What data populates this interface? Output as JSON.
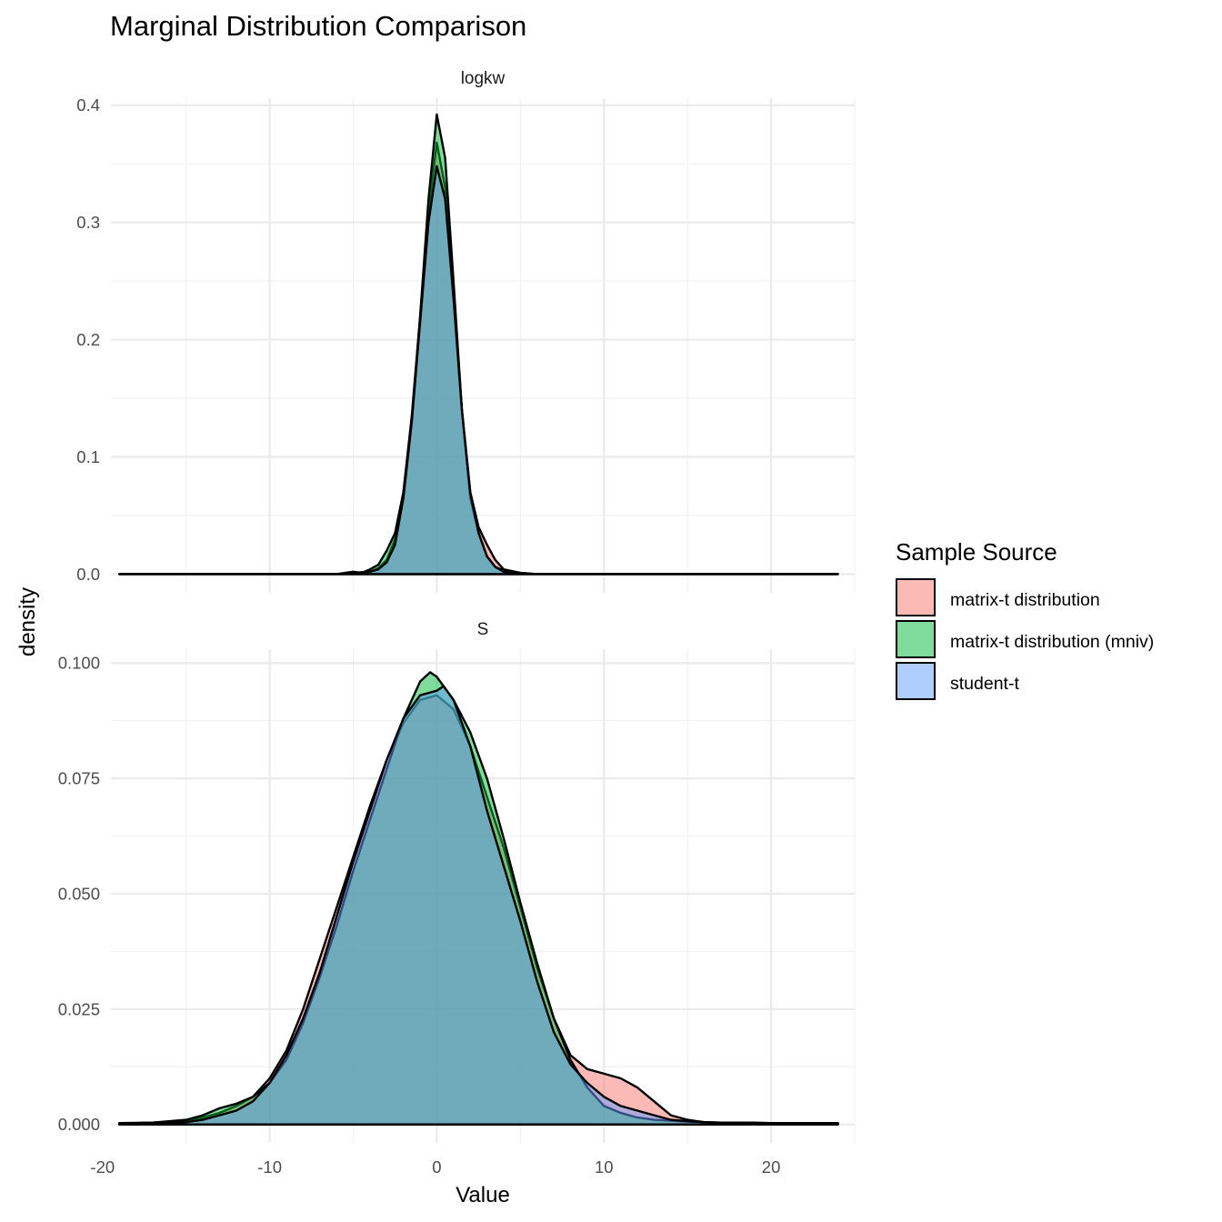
{
  "chart_data": {
    "type": "area",
    "title": "Marginal Distribution Comparison",
    "xlabel": "Value",
    "ylabel": "density",
    "xlim": [
      -19.5,
      25
    ],
    "x_ticks": [
      -20,
      -10,
      0,
      10,
      20
    ],
    "x_tick_labels": [
      "-20",
      "-10",
      "0",
      "10",
      "20"
    ],
    "grid": true,
    "legend": {
      "title": "Sample Source",
      "position": "right",
      "entries": [
        {
          "name": "matrix-t distribution",
          "color": "#F8766D"
        },
        {
          "name": "matrix-t distribution (mniv)",
          "color": "#00BA38"
        },
        {
          "name": "student-t",
          "color": "#619CFF"
        }
      ]
    },
    "fill_opacity": 0.5,
    "panels": [
      {
        "strip": "logkw",
        "ylim": [
          -0.016,
          0.406
        ],
        "y_ticks": [
          0,
          0.1,
          0.2,
          0.3,
          0.4
        ],
        "y_tick_labels": [
          "0.0",
          "0.1",
          "0.2",
          "0.3",
          "0.4"
        ],
        "series": [
          {
            "name": "matrix-t distribution",
            "x": [
              -19,
              -6,
              -5,
              -4,
              -3.5,
              -3,
              -2.5,
              -2,
              -1.5,
              -1,
              -0.5,
              0,
              0.5,
              1,
              1.5,
              2,
              2.5,
              3,
              3.5,
              4,
              5,
              6,
              24
            ],
            "y": [
              0,
              0,
              0.001,
              0.002,
              0.005,
              0.012,
              0.03,
              0.07,
              0.135,
              0.22,
              0.31,
              0.368,
              0.33,
              0.24,
              0.14,
              0.07,
              0.04,
              0.025,
              0.012,
              0.004,
              0.001,
              0,
              0
            ]
          },
          {
            "name": "matrix-t distribution (mniv)",
            "x": [
              -19,
              -6,
              -5,
              -4.5,
              -4,
              -3.5,
              -3,
              -2.5,
              -2,
              -1.5,
              -1,
              -0.5,
              0,
              0.5,
              1,
              1.5,
              2,
              2.5,
              3,
              3.5,
              4,
              5,
              6,
              24
            ],
            "y": [
              0,
              0,
              0.002,
              0.001,
              0.004,
              0.008,
              0.02,
              0.035,
              0.07,
              0.13,
              0.22,
              0.32,
              0.392,
              0.355,
              0.25,
              0.14,
              0.065,
              0.035,
              0.015,
              0.006,
              0.003,
              0.001,
              0,
              0
            ]
          },
          {
            "name": "student-t",
            "x": [
              -19,
              -6,
              -5,
              -4,
              -3.5,
              -3,
              -2.5,
              -2,
              -1.5,
              -1,
              -0.5,
              0,
              0.5,
              1,
              1.5,
              2,
              2.5,
              3,
              3.5,
              4,
              5,
              6,
              24
            ],
            "y": [
              0,
              0,
              0.001,
              0.002,
              0.004,
              0.01,
              0.025,
              0.065,
              0.13,
              0.215,
              0.3,
              0.348,
              0.32,
              0.235,
              0.14,
              0.07,
              0.035,
              0.015,
              0.006,
              0.002,
              0,
              0,
              0
            ]
          }
        ]
      },
      {
        "strip": "S",
        "ylim": [
          -0.004,
          0.103
        ],
        "y_ticks": [
          0,
          0.025,
          0.05,
          0.075,
          0.1
        ],
        "y_tick_labels": [
          "0.000",
          "0.025",
          "0.050",
          "0.075",
          "0.100"
        ],
        "series": [
          {
            "name": "matrix-t distribution",
            "x": [
              -19,
              -17,
              -15,
              -14,
              -13,
              -12,
              -11,
              -10,
              -9,
              -8,
              -7,
              -6,
              -5,
              -4,
              -3,
              -2,
              -1,
              0,
              1,
              2,
              3,
              4,
              5,
              6,
              7,
              8,
              9,
              10,
              11,
              12,
              13,
              14,
              15,
              16,
              17,
              18,
              19,
              20,
              21,
              22,
              23,
              24
            ],
            "y": [
              0.0003,
              0.0004,
              0.0008,
              0.0015,
              0.0025,
              0.004,
              0.006,
              0.01,
              0.016,
              0.025,
              0.036,
              0.047,
              0.058,
              0.069,
              0.079,
              0.087,
              0.092,
              0.093,
              0.09,
              0.082,
              0.071,
              0.06,
              0.047,
              0.034,
              0.023,
              0.015,
              0.012,
              0.011,
              0.01,
              0.008,
              0.005,
              0.002,
              0.001,
              0.0005,
              0.0003,
              0.0003,
              0.0003,
              0.0003,
              0.0002,
              0.0002,
              0.0002,
              0.0002
            ]
          },
          {
            "name": "matrix-t distribution (mniv)",
            "x": [
              -19,
              -17,
              -15,
              -14,
              -13,
              -12,
              -11,
              -10,
              -9,
              -8,
              -7,
              -6,
              -5,
              -4,
              -3,
              -2,
              -1,
              -0.4,
              0,
              1,
              2,
              3,
              4,
              5,
              6,
              7,
              8,
              9,
              10,
              11,
              12,
              13,
              14,
              15,
              16,
              17,
              18,
              19,
              20,
              21,
              22,
              23,
              24
            ],
            "y": [
              0.0002,
              0.0004,
              0.001,
              0.002,
              0.0035,
              0.0045,
              0.006,
              0.009,
              0.014,
              0.022,
              0.032,
              0.043,
              0.055,
              0.066,
              0.077,
              0.088,
              0.096,
              0.098,
              0.097,
              0.092,
              0.085,
              0.075,
              0.062,
              0.048,
              0.035,
              0.023,
              0.014,
              0.008,
              0.004,
              0.0025,
              0.0015,
              0.001,
              0.0008,
              0.0006,
              0.0005,
              0.0004,
              0.0004,
              0.0004,
              0.0003,
              0.0003,
              0.0003,
              0.0003,
              0.0003
            ]
          },
          {
            "name": "student-t",
            "x": [
              -19,
              -17,
              -15,
              -14,
              -13,
              -12,
              -11,
              -10,
              -9,
              -8,
              -7,
              -6,
              -5,
              -4,
              -3,
              -2,
              -1,
              0,
              0.4,
              1,
              2,
              3,
              4,
              5,
              6,
              7,
              8,
              9,
              10,
              11,
              12,
              13,
              14,
              15,
              16,
              17,
              18,
              19,
              20,
              21,
              22,
              23,
              24
            ],
            "y": [
              0.0002,
              0.0002,
              0.0005,
              0.001,
              0.002,
              0.003,
              0.005,
              0.009,
              0.015,
              0.023,
              0.033,
              0.045,
              0.057,
              0.068,
              0.079,
              0.088,
              0.093,
              0.094,
              0.095,
              0.092,
              0.082,
              0.068,
              0.056,
              0.044,
              0.031,
              0.02,
              0.013,
              0.009,
              0.006,
              0.004,
              0.003,
              0.002,
              0.001,
              0.0007,
              0.0005,
              0.0004,
              0.0003,
              0.0003,
              0.0003,
              0.0002,
              0.0002,
              0.0002,
              0.0002
            ]
          }
        ]
      }
    ]
  }
}
